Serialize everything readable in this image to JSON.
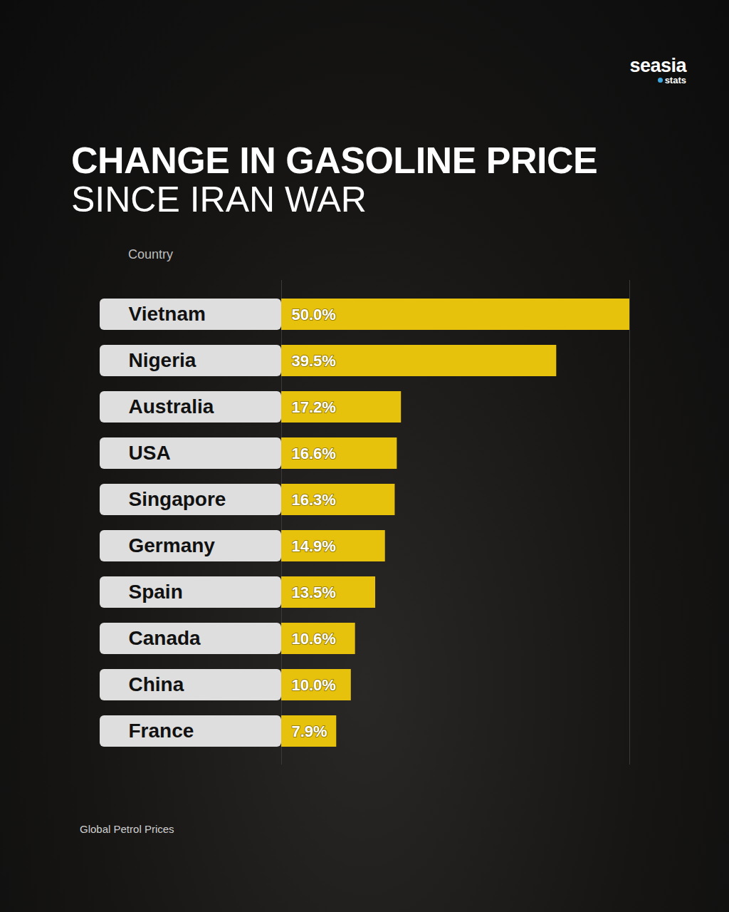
{
  "chart_data": {
    "type": "bar",
    "orientation": "horizontal",
    "title": "CHANGE IN GASOLINE PRICE",
    "subtitle": "SINCE IRAN WAR",
    "column_header": "Country",
    "source": "Global Petrol Prices",
    "brand": "seasia",
    "brand_sub": "stats",
    "categories": [
      "Vietnam",
      "Nigeria",
      "Australia",
      "USA",
      "Singapore",
      "Germany",
      "Spain",
      "Canada",
      "China",
      "France"
    ],
    "values": [
      50.0,
      39.5,
      17.2,
      16.6,
      16.3,
      14.9,
      13.5,
      10.6,
      10.0,
      7.9
    ],
    "value_labels": [
      "50.0%",
      "39.5%",
      "17.2%",
      "16.6%",
      "16.3%",
      "14.9%",
      "13.5%",
      "10.6%",
      "10.0%",
      "7.9%"
    ],
    "color": "#e6c20d",
    "xlim": [
      0,
      50
    ],
    "xticks": [],
    "grid": false,
    "data_labels": true,
    "tick_labels": "y"
  }
}
